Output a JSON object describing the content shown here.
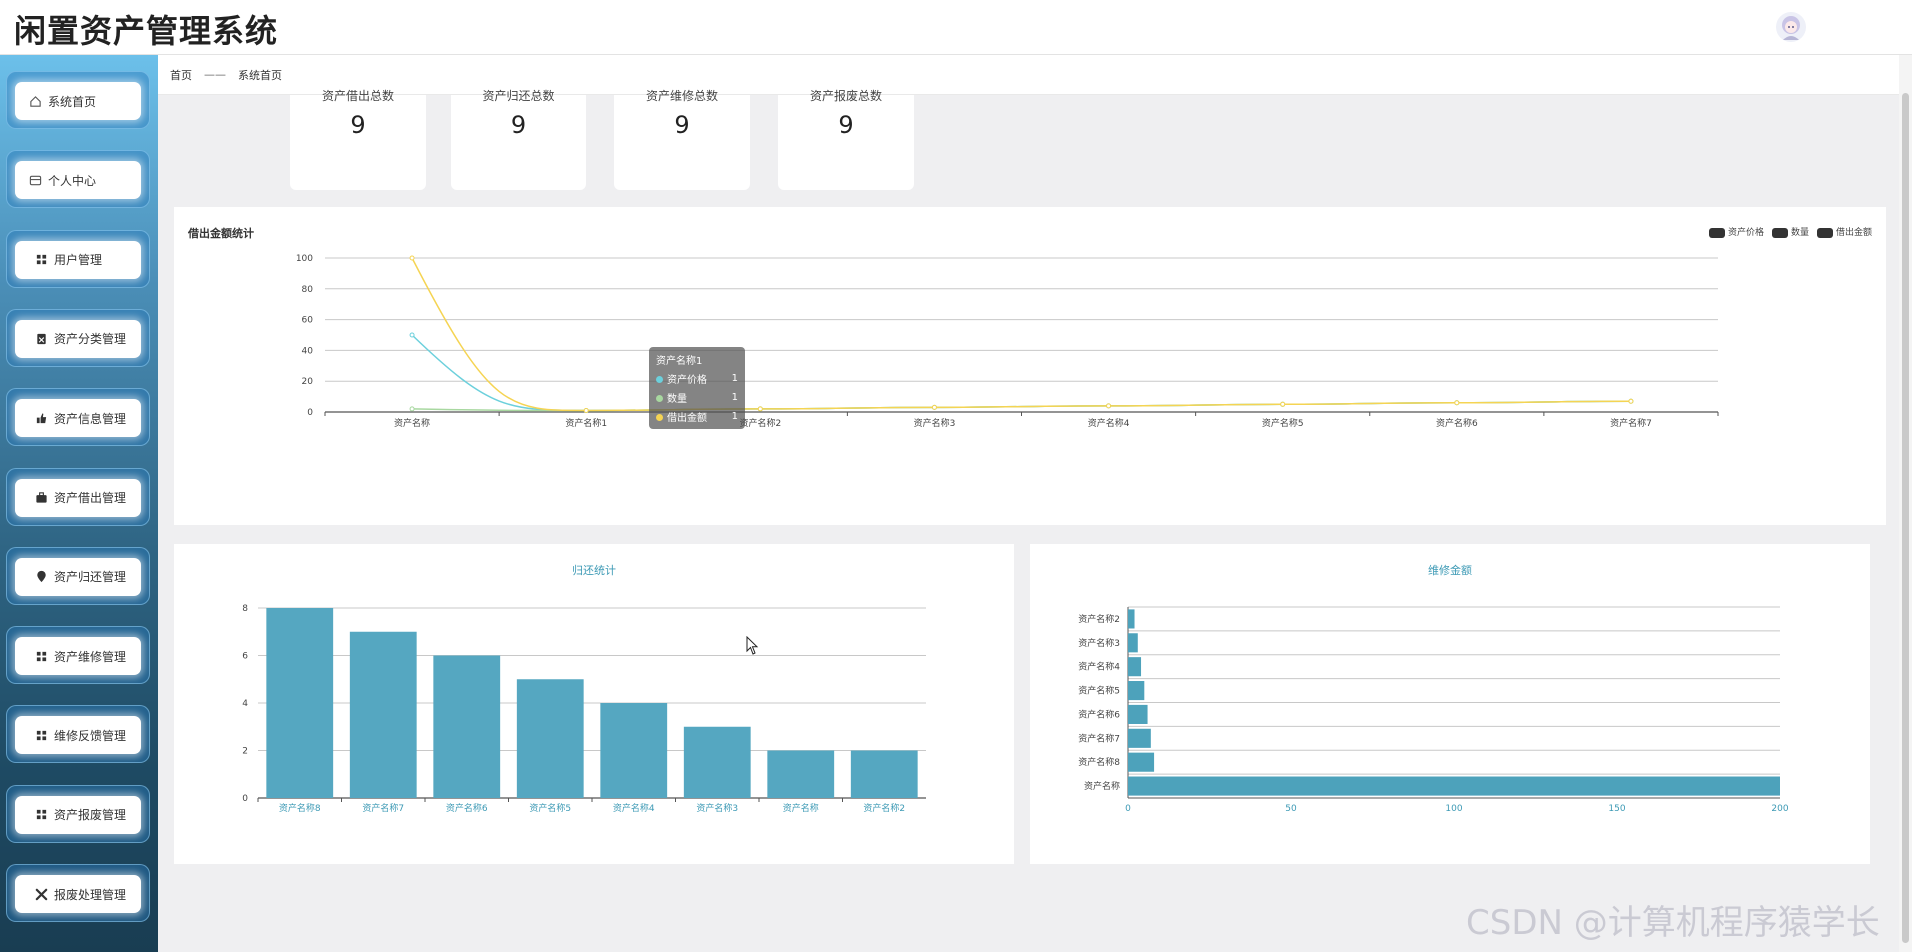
{
  "header": {
    "title": "闲置资产管理系统"
  },
  "sidebar": {
    "items": [
      {
        "label": "系统首页",
        "icon": "home-icon"
      },
      {
        "label": "个人中心",
        "icon": "card-icon"
      },
      {
        "label": "用户管理",
        "icon": "grid-icon"
      },
      {
        "label": "资产分类管理",
        "icon": "clipboard-icon"
      },
      {
        "label": "资产信息管理",
        "icon": "thumb-icon"
      },
      {
        "label": "资产借出管理",
        "icon": "briefcase-icon"
      },
      {
        "label": "资产归还管理",
        "icon": "pin-icon"
      },
      {
        "label": "资产维修管理",
        "icon": "grid-icon"
      },
      {
        "label": "维修反馈管理",
        "icon": "grid-icon"
      },
      {
        "label": "资产报废管理",
        "icon": "grid-icon"
      },
      {
        "label": "报废处理管理",
        "icon": "tools-icon"
      }
    ]
  },
  "breadcrumb": {
    "home": "首页",
    "separator": "——",
    "current": "系统首页"
  },
  "stats": [
    {
      "label": "资产借出总数",
      "value": "9"
    },
    {
      "label": "资产归还总数",
      "value": "9"
    },
    {
      "label": "资产维修总数",
      "value": "9"
    },
    {
      "label": "资产报废总数",
      "value": "9"
    }
  ],
  "tooltip": {
    "title": "资产名称1",
    "rows": [
      {
        "name": "资产价格",
        "value": "1"
      },
      {
        "name": "数量",
        "value": "1"
      },
      {
        "name": "借出金额",
        "value": "1"
      }
    ]
  },
  "watermark": "CSDN @计算机程序猿学长",
  "chart_data": [
    {
      "type": "line",
      "title": "借出金额统计",
      "x": [
        "资产名称",
        "资产名称1",
        "资产名称2",
        "资产名称3",
        "资产名称4",
        "资产名称5",
        "资产名称6",
        "资产名称7"
      ],
      "ylim": [
        0,
        100
      ],
      "yticks": [
        0,
        20,
        40,
        60,
        80,
        100
      ],
      "legend_position": "top-right",
      "series": [
        {
          "name": "资产价格",
          "color": "#6cd0dc",
          "values": [
            50,
            1,
            2,
            3,
            4,
            5,
            6,
            7
          ]
        },
        {
          "name": "数量",
          "color": "#a8d8a0",
          "values": [
            2,
            1,
            2,
            3,
            4,
            5,
            6,
            7
          ]
        },
        {
          "name": "借出金额",
          "color": "#f5d453",
          "values": [
            100,
            1,
            2,
            3,
            4,
            5,
            6,
            7
          ]
        }
      ]
    },
    {
      "type": "bar",
      "title": "归还统计",
      "categories": [
        "资产名称8",
        "资产名称7",
        "资产名称6",
        "资产名称5",
        "资产名称4",
        "资产名称3",
        "资产名称",
        "资产名称2"
      ],
      "values": [
        8,
        7,
        6,
        5,
        4,
        3,
        2,
        2
      ],
      "ylim": [
        0,
        8
      ],
      "yticks": [
        0,
        2,
        4,
        6,
        8
      ],
      "color": "#55a7c1"
    },
    {
      "type": "bar",
      "orientation": "horizontal",
      "title": "维修金额",
      "categories": [
        "资产名称2",
        "资产名称3",
        "资产名称4",
        "资产名称5",
        "资产名称6",
        "资产名称7",
        "资产名称8",
        "资产名称"
      ],
      "values": [
        2,
        3,
        4,
        5,
        6,
        7,
        8,
        200
      ],
      "xlim": [
        0,
        200
      ],
      "xticks": [
        0,
        50,
        100,
        150,
        200
      ],
      "color": "#4da2bb"
    }
  ]
}
